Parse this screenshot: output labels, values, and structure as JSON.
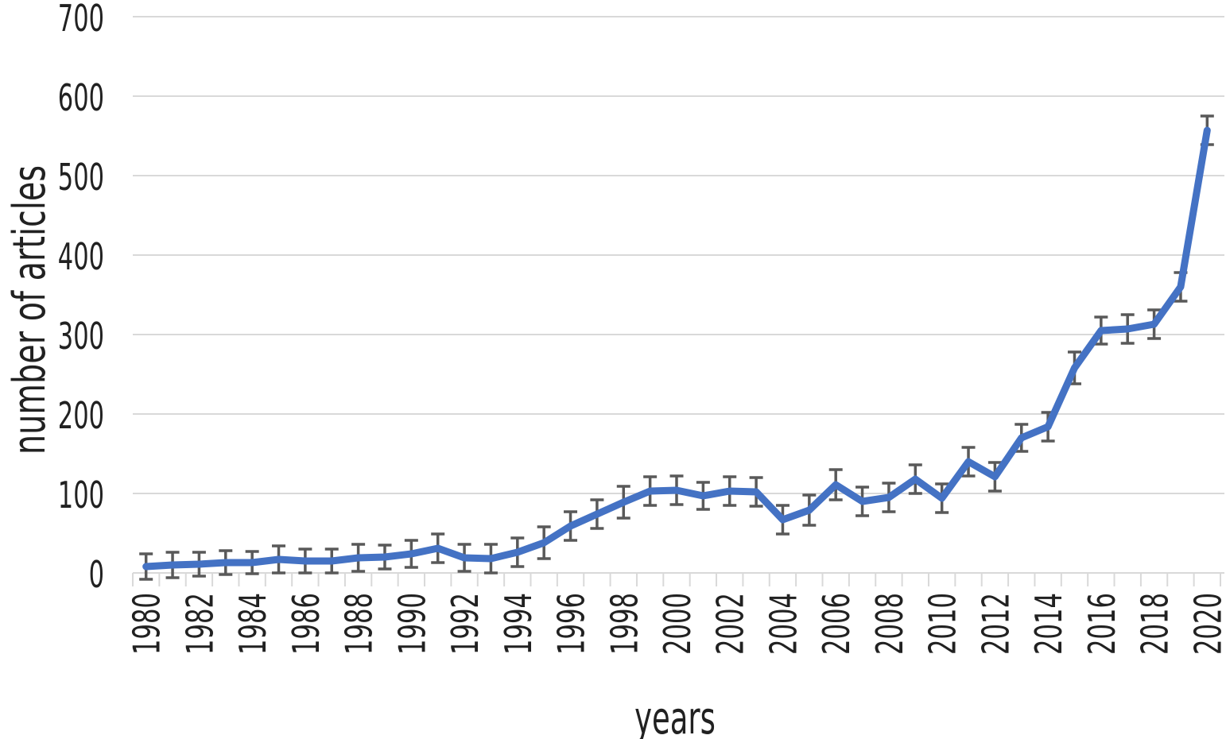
{
  "figure": {
    "background": "#ffffff"
  },
  "chart_data": {
    "type": "line",
    "title": "",
    "xlabel": "years",
    "ylabel": "number of articles",
    "x": [
      1980,
      1981,
      1982,
      1983,
      1984,
      1985,
      1986,
      1987,
      1988,
      1989,
      1990,
      1991,
      1992,
      1993,
      1994,
      1995,
      1996,
      1997,
      1998,
      1999,
      2000,
      2001,
      2002,
      2003,
      2004,
      2005,
      2006,
      2007,
      2008,
      2009,
      2010,
      2011,
      2012,
      2013,
      2014,
      2015,
      2016,
      2017,
      2018,
      2019,
      2020
    ],
    "series": [
      {
        "name": "number of articles",
        "values": [
          8,
          10,
          11,
          13,
          13,
          17,
          15,
          15,
          19,
          20,
          24,
          31,
          19,
          18,
          26,
          38,
          59,
          74,
          89,
          103,
          104,
          97,
          103,
          102,
          67,
          79,
          111,
          90,
          95,
          118,
          94,
          140,
          121,
          170,
          184,
          258,
          305,
          307,
          313,
          360,
          557
        ],
        "errors": [
          16,
          16,
          15,
          15,
          14,
          17,
          15,
          15,
          17,
          15,
          17,
          18,
          17,
          18,
          18,
          20,
          18,
          18,
          20,
          18,
          18,
          17,
          18,
          18,
          18,
          19,
          19,
          18,
          18,
          18,
          18,
          18,
          18,
          17,
          18,
          20,
          17,
          18,
          18,
          18,
          18
        ]
      }
    ],
    "x_tick_labels": [
      "1980",
      "1982",
      "1984",
      "1986",
      "1988",
      "1990",
      "1992",
      "1994",
      "1996",
      "1998",
      "2000",
      "2002",
      "2004",
      "2006",
      "2008",
      "2010",
      "2012",
      "2014",
      "2016",
      "2018",
      "2020"
    ],
    "x_label_every": 2,
    "y_ticks": [
      0,
      100,
      200,
      300,
      400,
      500,
      600,
      700
    ],
    "ylim": [
      0,
      700
    ],
    "grid": "horizontal",
    "legend": "none",
    "error_bar_style": "capped-whiskers",
    "colors": {
      "line": "#4472C4",
      "error_bar": "#595959",
      "gridline": "#D9D9D9",
      "tick": "#D9D9D9",
      "text": "#212121"
    }
  }
}
